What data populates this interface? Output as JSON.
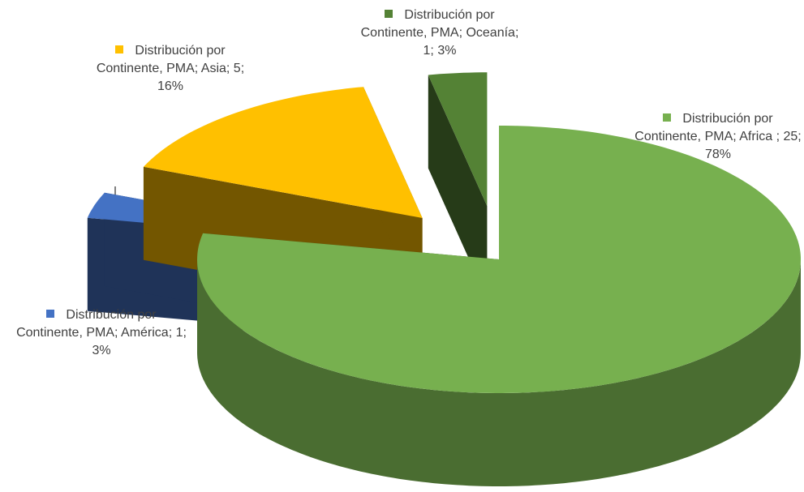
{
  "chart_data": {
    "type": "pie",
    "values": [
      25,
      1,
      5,
      1
    ],
    "value_labels": [
      "Distribución por Continente, PMA; Africa ; 25; 78%",
      "Distribución por Continente, PMA; América; 1; 3%",
      "Distribución por Continente, PMA; Asia; 5; 16%",
      "Distribución por Continente, PMA; Oceanía; 1; 3%"
    ],
    "colors": [
      "#77b04f",
      "#4472c4",
      "#ffc000",
      "#548235"
    ]
  }
}
